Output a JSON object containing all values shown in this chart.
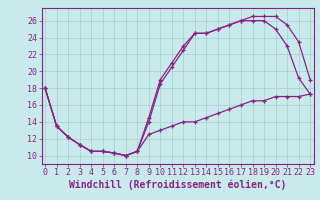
{
  "xlabel": "Windchill (Refroidissement éolien,°C)",
  "xticks": [
    0,
    1,
    2,
    3,
    4,
    5,
    6,
    7,
    8,
    9,
    10,
    11,
    12,
    13,
    14,
    15,
    16,
    17,
    18,
    19,
    20,
    21,
    22,
    23
  ],
  "yticks": [
    10,
    12,
    14,
    16,
    18,
    20,
    22,
    24,
    26
  ],
  "background_color": "#c8eaea",
  "grid_color": "#aacccc",
  "line_color": "#882288",
  "line1_x": [
    0,
    1,
    2,
    3,
    4,
    5,
    6,
    7,
    8,
    9,
    10,
    11,
    12,
    13,
    14,
    15,
    16,
    17,
    18,
    19,
    20,
    21,
    22,
    23
  ],
  "line1_y": [
    18,
    13.5,
    12.2,
    11.3,
    10.5,
    10.5,
    10.3,
    10.0,
    10.5,
    14,
    18.5,
    20.5,
    22.5,
    24.5,
    24.5,
    25.0,
    25.5,
    26.0,
    26.0,
    26.0,
    25.0,
    23.0,
    19.2,
    17.3
  ],
  "line2_x": [
    0,
    1,
    2,
    3,
    4,
    5,
    6,
    7,
    8,
    9,
    10,
    11,
    12,
    13,
    14,
    15,
    16,
    17,
    18,
    19,
    20,
    21,
    22,
    23
  ],
  "line2_y": [
    18,
    13.5,
    12.2,
    11.3,
    10.5,
    10.5,
    10.3,
    10.0,
    10.5,
    14.5,
    19.0,
    21.0,
    23.0,
    24.5,
    24.5,
    25.0,
    25.5,
    26.0,
    26.5,
    26.5,
    26.5,
    25.5,
    23.5,
    19.0
  ],
  "line3_x": [
    0,
    1,
    2,
    3,
    4,
    5,
    6,
    7,
    8,
    9,
    10,
    11,
    12,
    13,
    14,
    15,
    16,
    17,
    18,
    19,
    20,
    21,
    22,
    23
  ],
  "line3_y": [
    18,
    13.5,
    12.2,
    11.3,
    10.5,
    10.5,
    10.3,
    10.0,
    10.5,
    12.5,
    13.0,
    13.5,
    14.0,
    14.0,
    14.5,
    15.0,
    15.5,
    16.0,
    16.5,
    16.5,
    17.0,
    17.0,
    17.0,
    17.3
  ],
  "xlabel_fontsize": 7,
  "tick_fontsize": 6,
  "figsize": [
    3.2,
    2.0
  ],
  "dpi": 100,
  "ylim": [
    9.0,
    27.5
  ],
  "xlim": [
    -0.3,
    23.3
  ]
}
